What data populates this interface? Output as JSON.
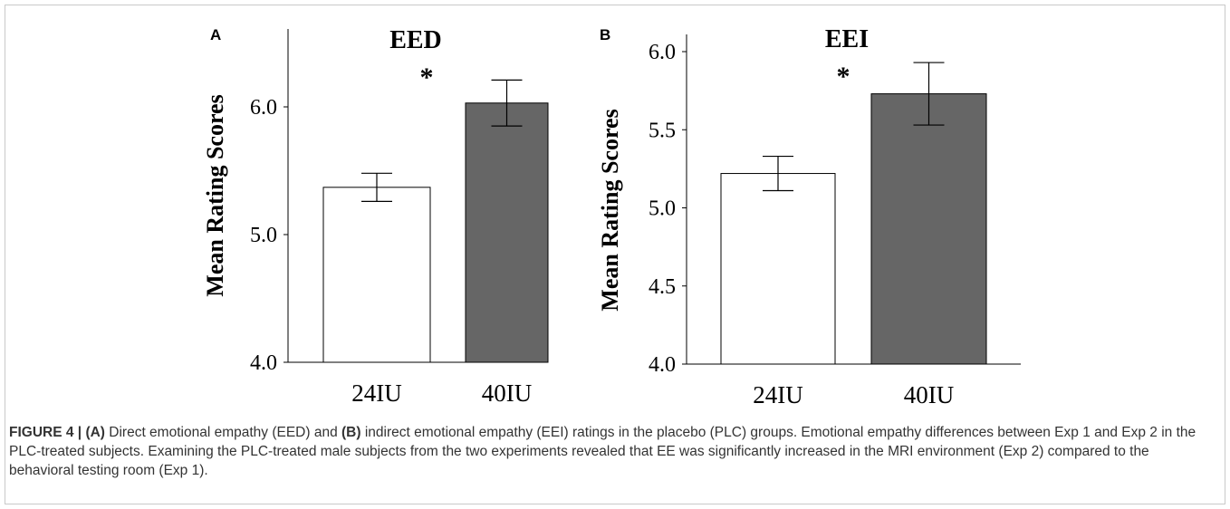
{
  "chart_data": [
    {
      "panel": "A",
      "type": "bar",
      "title": "EED",
      "ylabel": "Mean Rating Scores",
      "xlabel": "",
      "categories": [
        "24IU",
        "40IU"
      ],
      "values": [
        5.37,
        6.03
      ],
      "errors": [
        0.11,
        0.18
      ],
      "ylim": [
        4.0,
        6.7
      ],
      "yticks": [
        "4.0",
        "5.0",
        "6.0"
      ],
      "significance": "*",
      "bar_colors": [
        "#ffffff",
        "#666666"
      ]
    },
    {
      "panel": "B",
      "type": "bar",
      "title": "EEI",
      "ylabel": "Mean Rating Scores",
      "xlabel": "",
      "categories": [
        "24IU",
        "40IU"
      ],
      "values": [
        5.22,
        5.73
      ],
      "errors": [
        0.11,
        0.2
      ],
      "ylim": [
        4.0,
        6.15
      ],
      "yticks": [
        "4.0",
        "4.5",
        "5.0",
        "5.5",
        "6.0"
      ],
      "significance": "*",
      "bar_colors": [
        "#ffffff",
        "#666666"
      ]
    }
  ],
  "caption": {
    "label": "FIGURE 4 | ",
    "label_a": "(A)",
    "text_a": " Direct emotional empathy (EED) and ",
    "label_b": "(B)",
    "text_b": " indirect emotional empathy (EEI) ratings in the placebo (PLC) groups. Emotional empathy differences between Exp 1 and Exp 2 in the PLC-treated subjects. Examining the PLC-treated male subjects from the two experiments revealed that EE was significantly increased in the MRI environment (Exp 2) compared to the behavioral testing room (Exp 1)."
  }
}
